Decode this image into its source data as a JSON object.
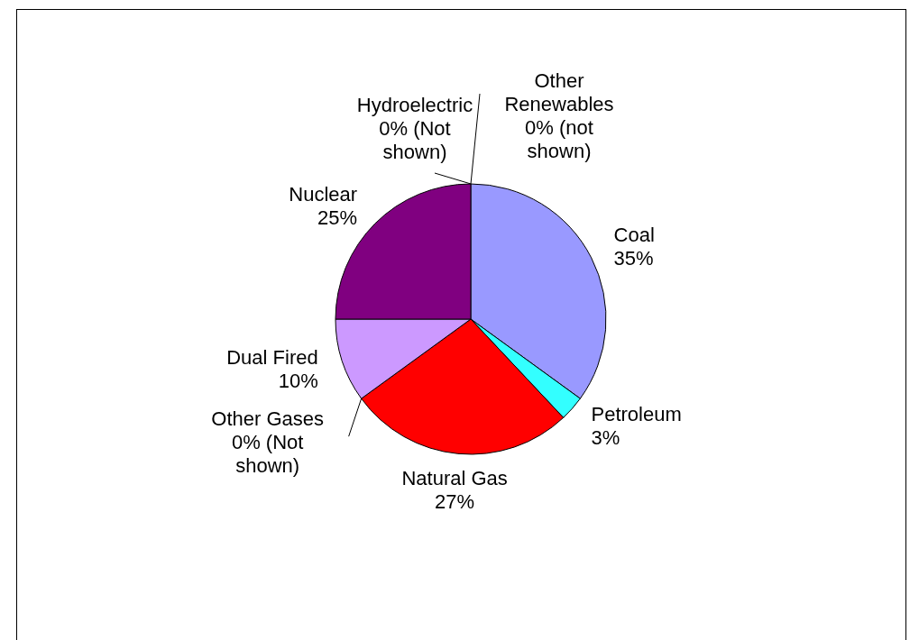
{
  "chart_data": {
    "type": "pie",
    "categories": [
      "Coal",
      "Petroleum",
      "Natural Gas",
      "Other Gases",
      "Dual Fired",
      "Nuclear",
      "Hydroelectric",
      "Other Renewables"
    ],
    "values": [
      35,
      3,
      27,
      0,
      10,
      25,
      0,
      0
    ],
    "colors": [
      "#9999ff",
      "#33ffff",
      "#ff0000",
      "#ffcc99",
      "#cc99ff",
      "#800080",
      "#ffffff",
      "#99cc00"
    ],
    "value_labels": [
      "35%",
      "3%",
      "27%",
      "0% (Not shown)",
      "10%",
      "25%",
      "0% (Not shown)",
      "0% (not shown)"
    ]
  }
}
